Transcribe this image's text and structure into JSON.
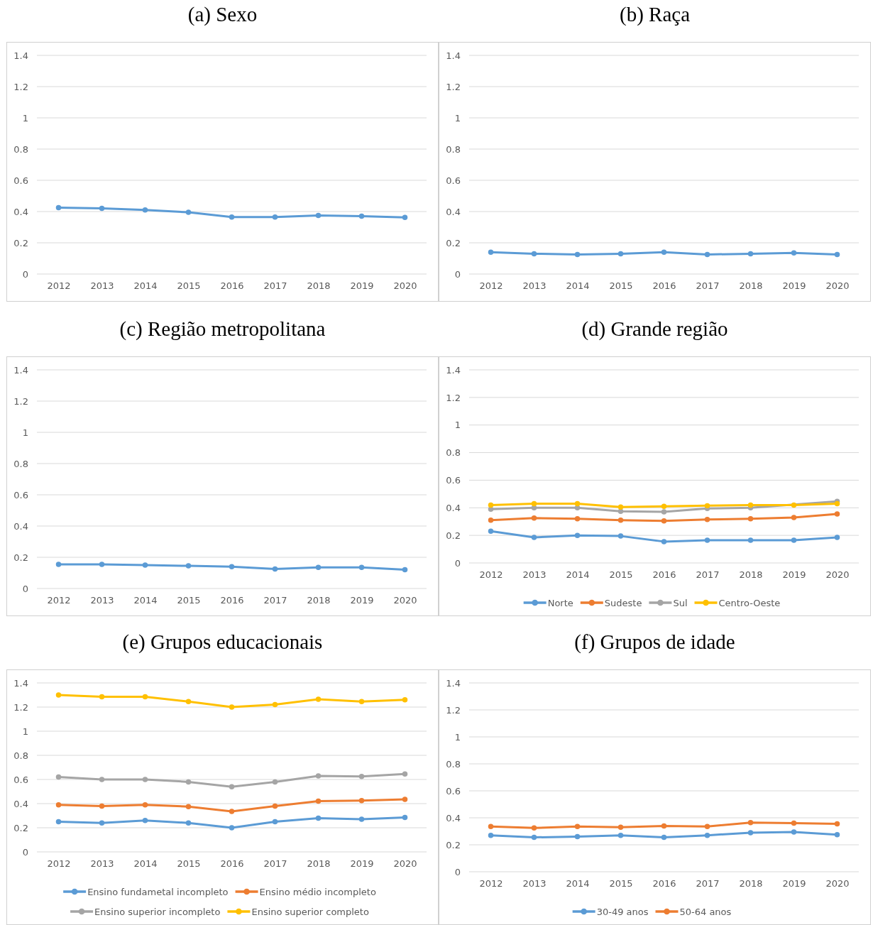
{
  "chart_data": [
    {
      "type": "line",
      "title": "(a) Sexo",
      "categories": [
        "2012",
        "2013",
        "2014",
        "2015",
        "2016",
        "2017",
        "2018",
        "2019",
        "2020"
      ],
      "ylim": [
        0,
        1.4
      ],
      "yticks": [
        0,
        0.2,
        0.4,
        0.6,
        0.8,
        1,
        1.2,
        1.4
      ],
      "grid": "y",
      "marker": "circle",
      "legend": false,
      "series": [
        {
          "color": "#5b9bd5",
          "values": [
            0.425,
            0.42,
            0.41,
            0.395,
            0.365,
            0.365,
            0.375,
            0.37,
            0.363
          ]
        }
      ]
    },
    {
      "type": "line",
      "title": "(b) Raça",
      "categories": [
        "2012",
        "2013",
        "2014",
        "2015",
        "2016",
        "2017",
        "2018",
        "2019",
        "2020"
      ],
      "ylim": [
        0,
        1.4
      ],
      "yticks": [
        0,
        0.2,
        0.4,
        0.6,
        0.8,
        1,
        1.2,
        1.4
      ],
      "grid": "y",
      "marker": "circle",
      "legend": false,
      "series": [
        {
          "color": "#5b9bd5",
          "values": [
            0.14,
            0.13,
            0.125,
            0.13,
            0.14,
            0.125,
            0.13,
            0.135,
            0.125
          ]
        }
      ]
    },
    {
      "type": "line",
      "title": "(c) Região metropolitana",
      "categories": [
        "2012",
        "2013",
        "2014",
        "2015",
        "2016",
        "2017",
        "2018",
        "2019",
        "2020"
      ],
      "ylim": [
        0,
        1.4
      ],
      "yticks": [
        0,
        0.2,
        0.4,
        0.6,
        0.8,
        1,
        1.2,
        1.4
      ],
      "grid": "y",
      "marker": "circle",
      "legend": false,
      "series": [
        {
          "color": "#5b9bd5",
          "values": [
            0.155,
            0.155,
            0.15,
            0.145,
            0.14,
            0.125,
            0.135,
            0.135,
            0.12
          ]
        }
      ]
    },
    {
      "type": "line",
      "title": "(d) Grande região",
      "categories": [
        "2012",
        "2013",
        "2014",
        "2015",
        "2016",
        "2017",
        "2018",
        "2019",
        "2020"
      ],
      "ylim": [
        0,
        1.4
      ],
      "yticks": [
        0,
        0.2,
        0.4,
        0.6,
        0.8,
        1,
        1.2,
        1.4
      ],
      "grid": "y",
      "marker": "circle",
      "legend": "bottom",
      "series": [
        {
          "name": "Norte",
          "color": "#5b9bd5",
          "values": [
            0.23,
            0.185,
            0.2,
            0.195,
            0.155,
            0.165,
            0.165,
            0.165,
            0.185
          ]
        },
        {
          "name": "Sudeste",
          "color": "#ed7d31",
          "values": [
            0.31,
            0.325,
            0.32,
            0.31,
            0.305,
            0.315,
            0.32,
            0.33,
            0.355
          ]
        },
        {
          "name": "Sul",
          "color": "#a5a5a5",
          "values": [
            0.39,
            0.4,
            0.4,
            0.375,
            0.37,
            0.395,
            0.4,
            null,
            0.447
          ]
        },
        {
          "name": "Centro-Oeste",
          "color": "#ffc000",
          "values": [
            0.42,
            0.43,
            0.43,
            0.405,
            0.41,
            0.415,
            0.42,
            0.42,
            0.43
          ]
        }
      ]
    },
    {
      "type": "line",
      "title": "(e) Grupos educacionais",
      "categories": [
        "2012",
        "2013",
        "2014",
        "2015",
        "2016",
        "2017",
        "2018",
        "2019",
        "2020"
      ],
      "ylim": [
        0,
        1.4
      ],
      "yticks": [
        0,
        0.2,
        0.4,
        0.6,
        0.8,
        1,
        1.2,
        1.4
      ],
      "grid": "y",
      "marker": "circle",
      "legend": "bottom",
      "series": [
        {
          "name": "Ensino fundametal incompleto",
          "color": "#5b9bd5",
          "values": [
            0.25,
            0.24,
            0.26,
            0.24,
            0.2,
            0.25,
            0.28,
            0.27,
            0.285
          ]
        },
        {
          "name": "Ensino médio incompleto",
          "color": "#ed7d31",
          "values": [
            0.39,
            0.38,
            0.39,
            0.375,
            0.335,
            0.38,
            0.42,
            0.425,
            0.435
          ]
        },
        {
          "name": "Ensino superior incompleto",
          "color": "#a5a5a5",
          "values": [
            0.62,
            0.6,
            0.6,
            0.58,
            0.54,
            0.58,
            0.63,
            0.625,
            0.645
          ]
        },
        {
          "name": "Ensino superior completo",
          "color": "#ffc000",
          "values": [
            1.3,
            1.285,
            1.285,
            1.245,
            1.2,
            1.22,
            1.265,
            1.245,
            1.26
          ]
        }
      ]
    },
    {
      "type": "line",
      "title": "(f) Grupos de idade",
      "categories": [
        "2012",
        "2013",
        "2014",
        "2015",
        "2016",
        "2017",
        "2018",
        "2019",
        "2020"
      ],
      "ylim": [
        0,
        1.4
      ],
      "yticks": [
        0,
        0.2,
        0.4,
        0.6,
        0.8,
        1,
        1.2,
        1.4
      ],
      "grid": "y",
      "marker": "circle",
      "legend": "bottom",
      "series": [
        {
          "name": "30-49 anos",
          "color": "#5b9bd5",
          "values": [
            0.27,
            0.255,
            0.26,
            0.27,
            0.255,
            0.27,
            0.29,
            0.295,
            0.275
          ]
        },
        {
          "name": "50-64 anos",
          "color": "#ed7d31",
          "values": [
            0.335,
            0.325,
            0.335,
            0.33,
            0.34,
            0.335,
            0.365,
            0.36,
            0.355
          ]
        }
      ]
    }
  ]
}
